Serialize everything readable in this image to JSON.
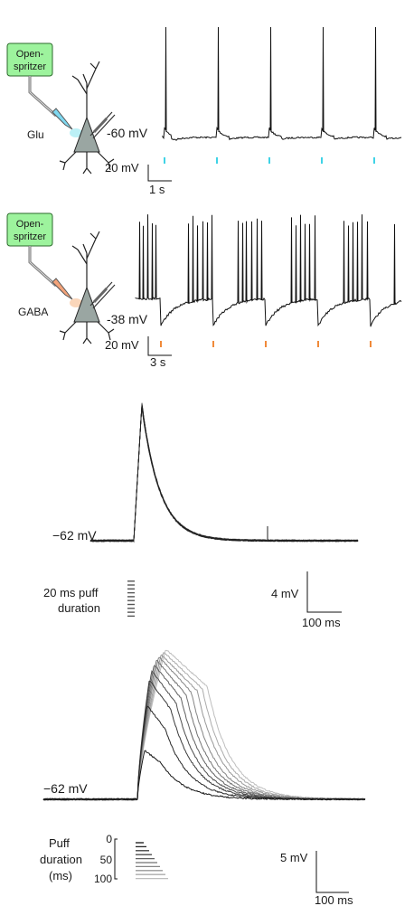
{
  "panel_a": {
    "device_line1": "Open-",
    "device_line2": "spritzer",
    "drug": "Glu",
    "baseline_label": "-60 mV",
    "scale_v": "20 mV",
    "scale_t": "1 s",
    "puff_color": "#3fd3e6",
    "pipette_color": "#7fd8f0",
    "puff_times_s": [
      0.0,
      1.05,
      2.1,
      3.15,
      4.2
    ]
  },
  "panel_b": {
    "device_line1": "Open-",
    "device_line2": "spritzer",
    "drug": "GABA",
    "baseline_label": "-38 mV",
    "scale_v": "20 mV",
    "scale_t": "3 s",
    "puff_color": "#f08a3a",
    "pipette_color": "#f3a37a",
    "puff_times_s": [
      0.0,
      3.2,
      6.4,
      9.6,
      12.8
    ]
  },
  "panel_c": {
    "baseline_label": "−62 mV",
    "puff_label_line1": "20 ms puff",
    "puff_label_line2": "duration",
    "scale_v": "4 mV",
    "scale_t": "100 ms",
    "repeats": 10,
    "peak_mv": 16
  },
  "panel_d": {
    "baseline_label": "−62 mV",
    "legend_title_line1": "Puff",
    "legend_title_line2": "duration",
    "legend_title_line3": "(ms)",
    "legend_ticks": [
      "0",
      "50",
      "100"
    ],
    "scale_v": "5 mV",
    "scale_t": "100 ms",
    "puff_durations_ms": [
      10,
      20,
      30,
      40,
      50,
      60,
      70,
      80,
      90,
      100
    ]
  },
  "colors": {
    "neuron_fill": "#9aa6a2",
    "device_fill": "#9df39d",
    "trace": "#111111"
  }
}
